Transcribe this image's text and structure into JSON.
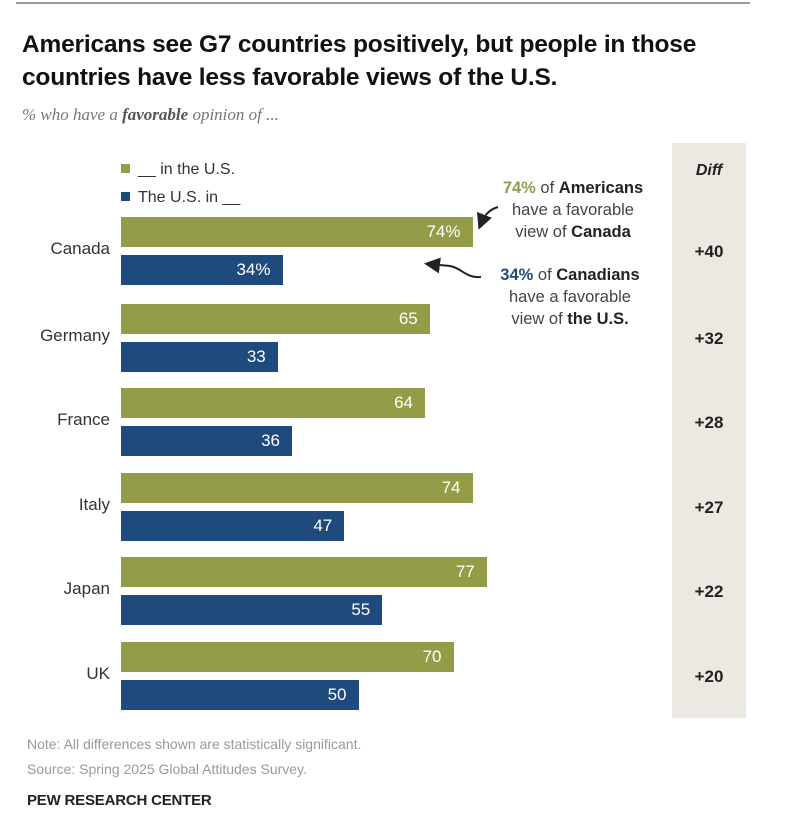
{
  "chart_data": {
    "type": "bar",
    "orientation": "horizontal",
    "title": "Americans see G7 countries positively, but people in those countries have less favorable views of the U.S.",
    "subtitle_prefix": "% who have a ",
    "subtitle_bold": "favorable",
    "subtitle_suffix": " opinion of ...",
    "categories": [
      "Canada",
      "Germany",
      "France",
      "Italy",
      "Japan",
      "UK"
    ],
    "series": [
      {
        "name": "__ in the U.S.",
        "color": "#949c48",
        "values": [
          74,
          65,
          64,
          74,
          77,
          70
        ],
        "labels": [
          "74%",
          "65",
          "64",
          "74",
          "77",
          "70"
        ]
      },
      {
        "name": "The U.S. in __",
        "color": "#1f4a7d",
        "values": [
          34,
          33,
          36,
          47,
          55,
          50
        ],
        "labels": [
          "34%",
          "33",
          "36",
          "47",
          "55",
          "50"
        ]
      }
    ],
    "diff": {
      "header": "Diff",
      "values": [
        "+40",
        "+32",
        "+28",
        "+27",
        "+22",
        "+20"
      ]
    },
    "xlim": [
      0,
      100
    ],
    "grid": false,
    "legend_position": "top-left",
    "annotations": [
      {
        "highlight": "74%",
        "highlight_color": "#949c48",
        "line1_rest": " of ",
        "line1_bold": "Americans",
        "line2": "have a favorable",
        "line3_plain": "view of ",
        "line3_bold": "Canada"
      },
      {
        "highlight": "34%",
        "highlight_color": "#1f4a7d",
        "line1_rest": " of ",
        "line1_bold": "Canadians",
        "line2": "have a favorable",
        "line3_plain": "view of ",
        "line3_bold": "the U.S."
      }
    ]
  },
  "footer": {
    "note": "Note: All differences shown are statistically significant.",
    "source": "Source: Spring 2025 Global Attitudes Survey.",
    "brand": "PEW RESEARCH CENTER"
  }
}
